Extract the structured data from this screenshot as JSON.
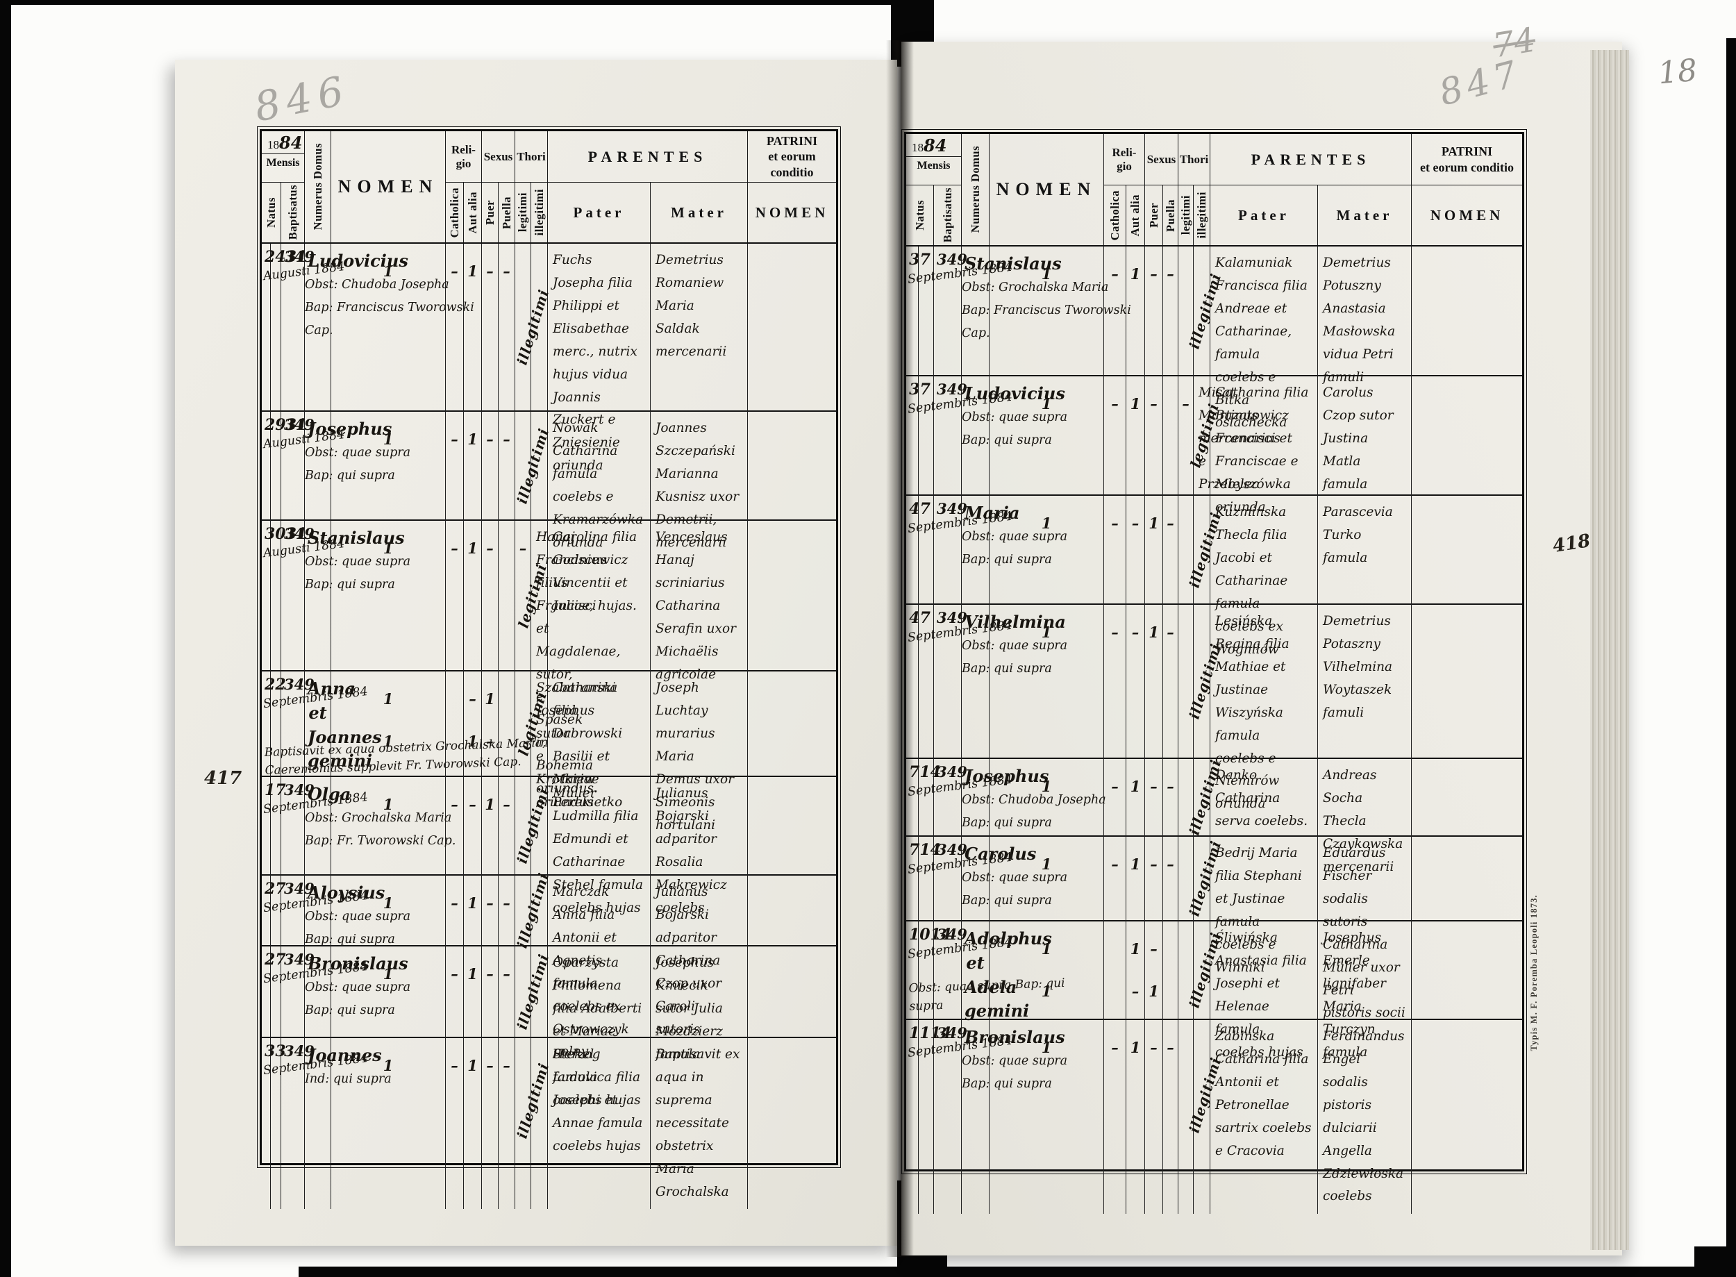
{
  "page_marks": {
    "left_page_number": "846",
    "right_page_number": "847",
    "crossed_number": "74",
    "corner_number": "18",
    "left_margin_number": "417",
    "right_margin_number": "418",
    "imprint": "Typis M. F. Poremba Leopoli 1873."
  },
  "header": {
    "year_printed": "18",
    "year_hand": "84",
    "mensis": "Mensis",
    "natus": "Natus",
    "baptisatus": "Baptisatus",
    "numerus_domus": "Numerus Domus",
    "nomen": "NOMEN",
    "religio": "Reli-\ngio",
    "catholica": "Catholica",
    "aut_alia": "Aut alia",
    "sexus": "Sexus",
    "puer": "Puer",
    "puella": "Puella",
    "thori": "Thori",
    "legitimi": "legitimi",
    "illegitimi": "illegitimi",
    "parentes": "PARENTES",
    "pater": "Pater",
    "mater": "Mater",
    "patrini": "PATRINI\net eorum conditio",
    "patrini_nomen": "NOMEN"
  },
  "pages": [
    {
      "side": "left",
      "rows": [
        {
          "natus": "24",
          "baptisatus": "31",
          "month_year": "Augusti 1884",
          "numerus": "349",
          "name": "Ludovicius",
          "name_sub": "Obst: Chudoba Josepha\nBap: Franciscus Tworowski Cap.",
          "catholica": "1",
          "aut_alia": "–",
          "puer": "1",
          "puella": "–",
          "legitimi": "–",
          "illegitimi": "",
          "thori_script": "illegitimi",
          "pater": "",
          "mater": "Fuchs Josepha filia Philippi et Elisabethae merc., nutrix hujus vidua Joannis Zuckert e Zniesienie oriunda",
          "patrini": "Demetrius Romaniew Maria Saldak mercenarii"
        },
        {
          "natus": "29",
          "baptisatus": "31",
          "month_year": "Augusti 1884",
          "numerus": "349",
          "name": "Josephus",
          "name_sub": "Obst: quae supra\nBap: qui supra",
          "catholica": "1",
          "aut_alia": "–",
          "puer": "1",
          "puella": "–",
          "legitimi": "–",
          "illegitimi": "",
          "thori_script": "illegitimi",
          "pater": "",
          "mater": "Nowak Catharina famula coelebs e Kramarzówka oriunda",
          "patrini": "Joannes Szczepański Marianna Kusnisz uxor Demetrii, mercenarii"
        },
        {
          "natus": "30",
          "baptisatus": "31",
          "month_year": "Augusti 1884",
          "numerus": "349",
          "name": "Stanislaus",
          "name_sub": "Obst: quae supra\nBap: qui supra",
          "catholica": "1",
          "aut_alia": "–",
          "puer": "1",
          "puella": "–",
          "legitimi": "",
          "illegitimi": "–",
          "thori_script": "legitimi",
          "pater": "Hanaj Franciscus filius Francisci et Magdalenae, sutor, e Spasek in Bohemia oriundus.",
          "mater": "Carolina filia Godniewicz Vincentii et Juliae, hujas.",
          "patrini": "Venceslaus Hanaj scriniarius Catharina Serafin uxor Michaëlis agricolae"
        },
        {
          "natus": "2",
          "baptisatus": "2",
          "month_year": "Septembris 1884",
          "numerus": "349",
          "name": "Anna\net\nJoannes\ngemini",
          "name_sub": "",
          "catholica": "1\n1",
          "aut_alia": "",
          "puer": "–\n1",
          "puella": "1\n–",
          "legitimi": "",
          "illegitimi": "",
          "thori_script": "legitimi",
          "pater": "Szabaranski Josephus sutor e Krotkiew oriundus",
          "mater": "Catharina filia Dabrowski Basilii et Mariae Perekietko",
          "patrini": "Joseph Luchtay murarius Maria Demus uxor Simeonis hortulani",
          "note": "Baptisavit ex aqua obstetrix Grochalska Maria,\nCaeremonias supplevit Fr. Tworowski Cap."
        },
        {
          "natus": "1",
          "baptisatus": "7",
          "month_year": "Septembris 1884",
          "numerus": "349",
          "name": "Olga",
          "name_sub": "Obst: Grochalska Maria\nBap: Fr. Tworowski Cap.",
          "catholica": "1",
          "aut_alia": "–",
          "puer": "–",
          "puella": "1",
          "legitimi": "–",
          "illegitimi": "",
          "thori_script": "illegitimi",
          "pater": "",
          "mater": "Müller Ludmilla filia Edmundi et Catharinae Stehel famula coelebs hujas",
          "patrini": "Julianus Bojarski adparitor Rosalia Makrewicz coelebs"
        },
        {
          "natus": "2",
          "baptisatus": "7",
          "month_year": "Septembris 1884",
          "numerus": "349",
          "name": "Aloysius",
          "name_sub": "Obst: quae supra\nBap: qui supra",
          "catholica": "1",
          "aut_alia": "–",
          "puer": "1",
          "puella": "–",
          "legitimi": "–",
          "illegitimi": "",
          "thori_script": "illegitimi",
          "pater": "",
          "mater": "Marczak Anna filia Antonii et Agnetis famula coelebs ex Ostrowczyk polny",
          "patrini": "Julianus Bojarski adparitor Catharina Czop uxor Caroli sutoris"
        },
        {
          "natus": "2",
          "baptisatus": "7",
          "month_year": "Septembris 1884",
          "numerus": "349",
          "name": "Bronislaus",
          "name_sub": "Obst: quae supra\nBap: qui supra",
          "catholica": "1",
          "aut_alia": "–",
          "puer": "1",
          "puella": "–",
          "legitimi": "–",
          "illegitimi": "",
          "thori_script": "illegitimi",
          "pater": "",
          "mater": "Oparzysta Philomena filia Adalberti et Mariae Herzog famula coelebs hujas",
          "patrini": "Josephus Kmiecik sutor Julia Mozdzierz famula"
        },
        {
          "natus": "3",
          "baptisatus": "3",
          "month_year": "Septembris 1884",
          "numerus": "349",
          "name": "Joannes",
          "name_sub": "Ind: qui supra",
          "catholica": "1",
          "aut_alia": "–",
          "puer": "1",
          "puella": "–",
          "legitimi": "–",
          "illegitimi": "",
          "thori_script": "illegitimi",
          "pater": "",
          "mater": "Stekel Ludovica filia Josephi et Annae famula coelebs hujas",
          "patrini": "Baptisavit ex aqua in suprema necessitate obstetrix Maria Grochalska"
        }
      ]
    },
    {
      "side": "right",
      "rows": [
        {
          "natus": "3",
          "baptisatus": "7",
          "month_year": "Septembris 1884",
          "numerus": "349",
          "name": "Stanislaus",
          "name_sub": "Obst: Grochalska Maria\nBap: Franciscus Tworowski Cap.",
          "catholica": "1",
          "aut_alia": "–",
          "puer": "1",
          "puella": "–",
          "legitimi": "–",
          "illegitimi": "",
          "thori_script": "illegitimi",
          "pater": "",
          "mater": "Kalamuniak Francisca filia Andreae et Catharinae, famula coelebs e Bitka oslachecka",
          "patrini": "Demetrius Potuszny Anastasia Masłowska vidua Petri famuli"
        },
        {
          "natus": "3",
          "baptisatus": "7",
          "month_year": "Septembris 1884",
          "numerus": "349",
          "name": "Ludovicius",
          "name_sub": "Obst: quae supra\nBap: qui supra",
          "catholica": "1",
          "aut_alia": "–",
          "puer": "1",
          "puella": "–",
          "legitimi": "",
          "illegitimi": "–",
          "thori_script": "legitimi",
          "pater": "Misat Martinus mercenarius e Przebyszówka",
          "mater": "Catharina filia Bazatowicz Francisci et Franciscae e Mielec oriunda",
          "patrini": "Carolus Czop sutor Justina Matla famula"
        },
        {
          "natus": "4",
          "baptisatus": "7",
          "month_year": "Septembris 1884",
          "numerus": "349",
          "name": "Maria",
          "name_sub": "Obst: quae supra\nBap: qui supra",
          "catholica": "1",
          "aut_alia": "–",
          "puer": "–",
          "puella": "1",
          "legitimi": "–",
          "illegitimi": "",
          "thori_script": "illegitimi",
          "pater": "",
          "mater": "Kuzminska Thecla filia Jacobi et Catharinae famula coelebs ex Wogniłów",
          "patrini": "Parascevia Turko famula"
        },
        {
          "natus": "4",
          "baptisatus": "7",
          "month_year": "Septembris 1884",
          "numerus": "349",
          "name": "Vilhelmina",
          "name_sub": "Obst: quae supra\nBap: qui supra",
          "catholica": "1",
          "aut_alia": "–",
          "puer": "–",
          "puella": "1",
          "legitimi": "–",
          "illegitimi": "",
          "thori_script": "illegitimi",
          "pater": "",
          "mater": "Lesińska Regina filia Mathiae et Justinae Wiszyńska famula coelebs e Niemirów oriunda",
          "patrini": "Demetrius Potaszny Vilhelmina Woytaszek famuli"
        },
        {
          "natus": "7",
          "baptisatus": "14",
          "month_year": "Septembris 1884",
          "numerus": "349",
          "name": "Josephus",
          "name_sub": "Obst: Chudoba Josepha\nBap: qui supra",
          "catholica": "1",
          "aut_alia": "–",
          "puer": "1",
          "puella": "–",
          "legitimi": "–",
          "illegitimi": "",
          "thori_script": "illegitimi",
          "pater": "",
          "mater": "Danko Catharina serva coelebs.",
          "patrini": "Andreas Socha Thecla Czaykowska mercenarii"
        },
        {
          "natus": "7",
          "baptisatus": "14",
          "month_year": "Septembris 1884",
          "numerus": "349",
          "name": "Carolus",
          "name_sub": "Obst: quae supra\nBap: qui supra",
          "catholica": "1",
          "aut_alia": "–",
          "puer": "1",
          "puella": "–",
          "legitimi": "–",
          "illegitimi": "",
          "thori_script": "illegitimi",
          "pater": "",
          "mater": "Bedrij Maria filia Stephani et Justinae famula coelebs e Winniki",
          "patrini": "Eduardus Fischer sodalis sutoris Catharina Müller uxor Petri pistoris socii"
        },
        {
          "natus": "10",
          "baptisatus": "14",
          "month_year": "Septembris 1884",
          "numerus": "349",
          "name": "Adolphus\net\nAdela\ngemini",
          "name_sub": "",
          "catholica": "1\n1",
          "aut_alia": "",
          "puer": "1\n–",
          "puella": "–\n1",
          "legitimi": "",
          "illegitimi": "",
          "thori_script": "illegitimi",
          "pater": "",
          "mater": "Śliwińska Anastasia filia Josephi et Helenae famula coelebs hujas",
          "patrini": "Josephus Emerle lignifaber Maria Turczyn famula",
          "note": "Obst: quae supra\nBap: qui supra"
        },
        {
          "natus": "11",
          "baptisatus": "14",
          "month_year": "Septembris 1884",
          "numerus": "349",
          "name": "Bronislaus",
          "name_sub": "Obst: quae supra\nBap: qui supra",
          "catholica": "1",
          "aut_alia": "–",
          "puer": "1",
          "puella": "–",
          "legitimi": "–",
          "illegitimi": "",
          "thori_script": "illegitimi",
          "pater": "",
          "mater": "Zabinska Catharina filia Antonii et Petronellae sartrix coelebs e Cracovia",
          "patrini": "Ferdinandus Engel sodalis pistoris dulciarii Angella Zdziewłoska coelebs"
        }
      ]
    }
  ]
}
